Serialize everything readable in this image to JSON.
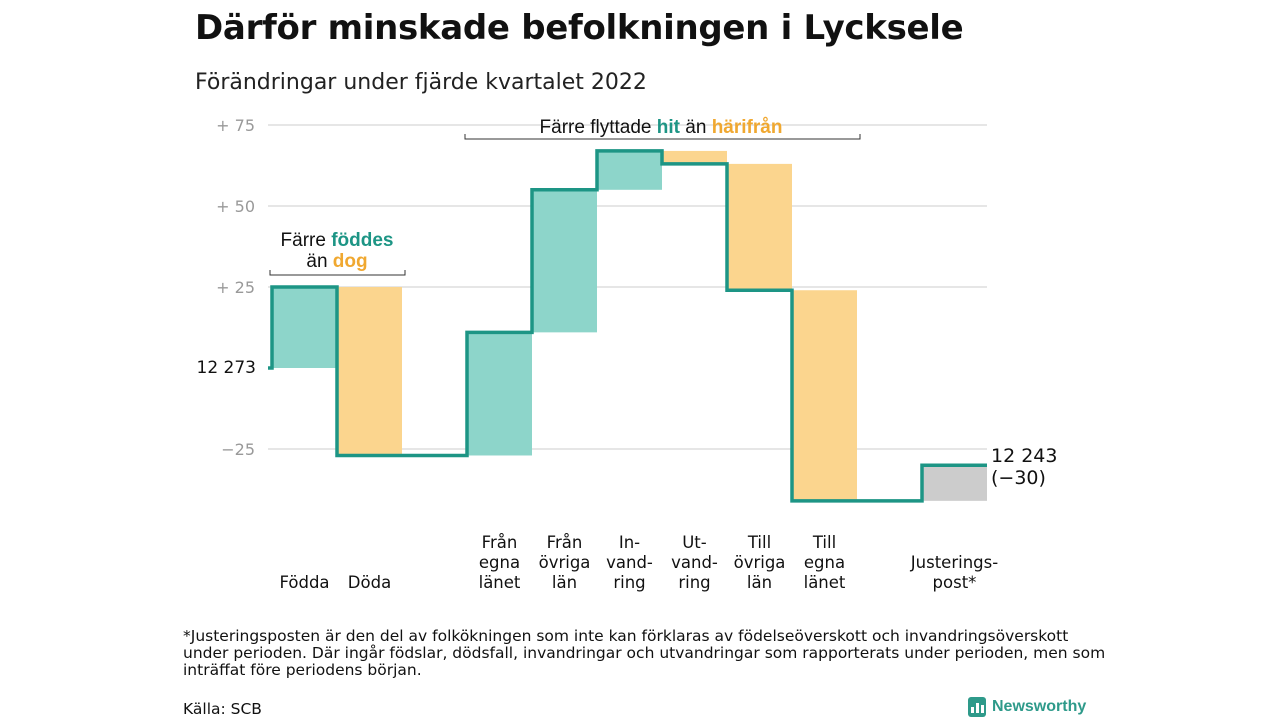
{
  "title": "Därför minskade befolkningen i Lycksele",
  "subtitle": "Förändringar under fjärde kvartalet 2022",
  "footnote": "*Justeringsposten är den del av folkökningen som inte kan förklaras av födelseöverskott och invandringsöverskott under perioden. Där ingår födslar, dödsfall, invandringar och utvandringar som rapporterats under perioden, men som inträffat före periodens början.",
  "source": "Källa: SCB",
  "brand": "Newsworthy",
  "colors": {
    "in": "#8dd5ca",
    "out": "#fbd58e",
    "adjust": "#cccccc",
    "line": "#1d9585",
    "grid": "#dddddd",
    "hit": "#1d9585",
    "dog": "#f0a830",
    "axis_text": "#999999"
  },
  "chart_data": {
    "type": "waterfall",
    "start": {
      "label": "12 273",
      "value": 12273
    },
    "end": {
      "label": "12 243",
      "change_label": "(−30)",
      "value": 12243
    },
    "ylim": [
      -40,
      80
    ],
    "yticks": [
      {
        "value": 75,
        "label": "+ 75"
      },
      {
        "value": 50,
        "label": "+ 50"
      },
      {
        "value": 25,
        "label": "+ 25"
      },
      {
        "value": -25,
        "label": "−25"
      }
    ],
    "steps": [
      {
        "name": "fodda",
        "label": [
          "Födda"
        ],
        "change": 25,
        "kind": "in"
      },
      {
        "name": "doda",
        "label": [
          "Döda"
        ],
        "change": -52,
        "kind": "out"
      },
      {
        "name": "fran-egna-lanet",
        "label": [
          "Från",
          "egna",
          "länet"
        ],
        "change": 38,
        "kind": "in"
      },
      {
        "name": "fran-ovriga-lan",
        "label": [
          "Från",
          "övriga",
          "län"
        ],
        "change": 44,
        "kind": "in"
      },
      {
        "name": "invandring",
        "label": [
          "In-",
          "vand-",
          "ring"
        ],
        "change": 12,
        "kind": "in"
      },
      {
        "name": "utvandring",
        "label": [
          "Ut-",
          "vand-",
          "ring"
        ],
        "change": -4,
        "kind": "out"
      },
      {
        "name": "till-ovriga-lan",
        "label": [
          "Till",
          "övriga",
          "län"
        ],
        "change": -39,
        "kind": "out"
      },
      {
        "name": "till-egna-lanet",
        "label": [
          "Till",
          "egna",
          "länet"
        ],
        "change": -65,
        "kind": "out"
      },
      {
        "name": "justeringspost",
        "label": [
          "Justerings-",
          "post*"
        ],
        "change": 11,
        "kind": "adjust"
      }
    ],
    "annotations": {
      "births": {
        "line1_pre": "Färre ",
        "line1_hl": "föddes",
        "line2_pre": "än ",
        "line2_hl": "dog"
      },
      "migration": {
        "pre": "Färre flyttade ",
        "hl1": "hit",
        "mid": " än ",
        "hl2": "härifrån"
      }
    }
  }
}
